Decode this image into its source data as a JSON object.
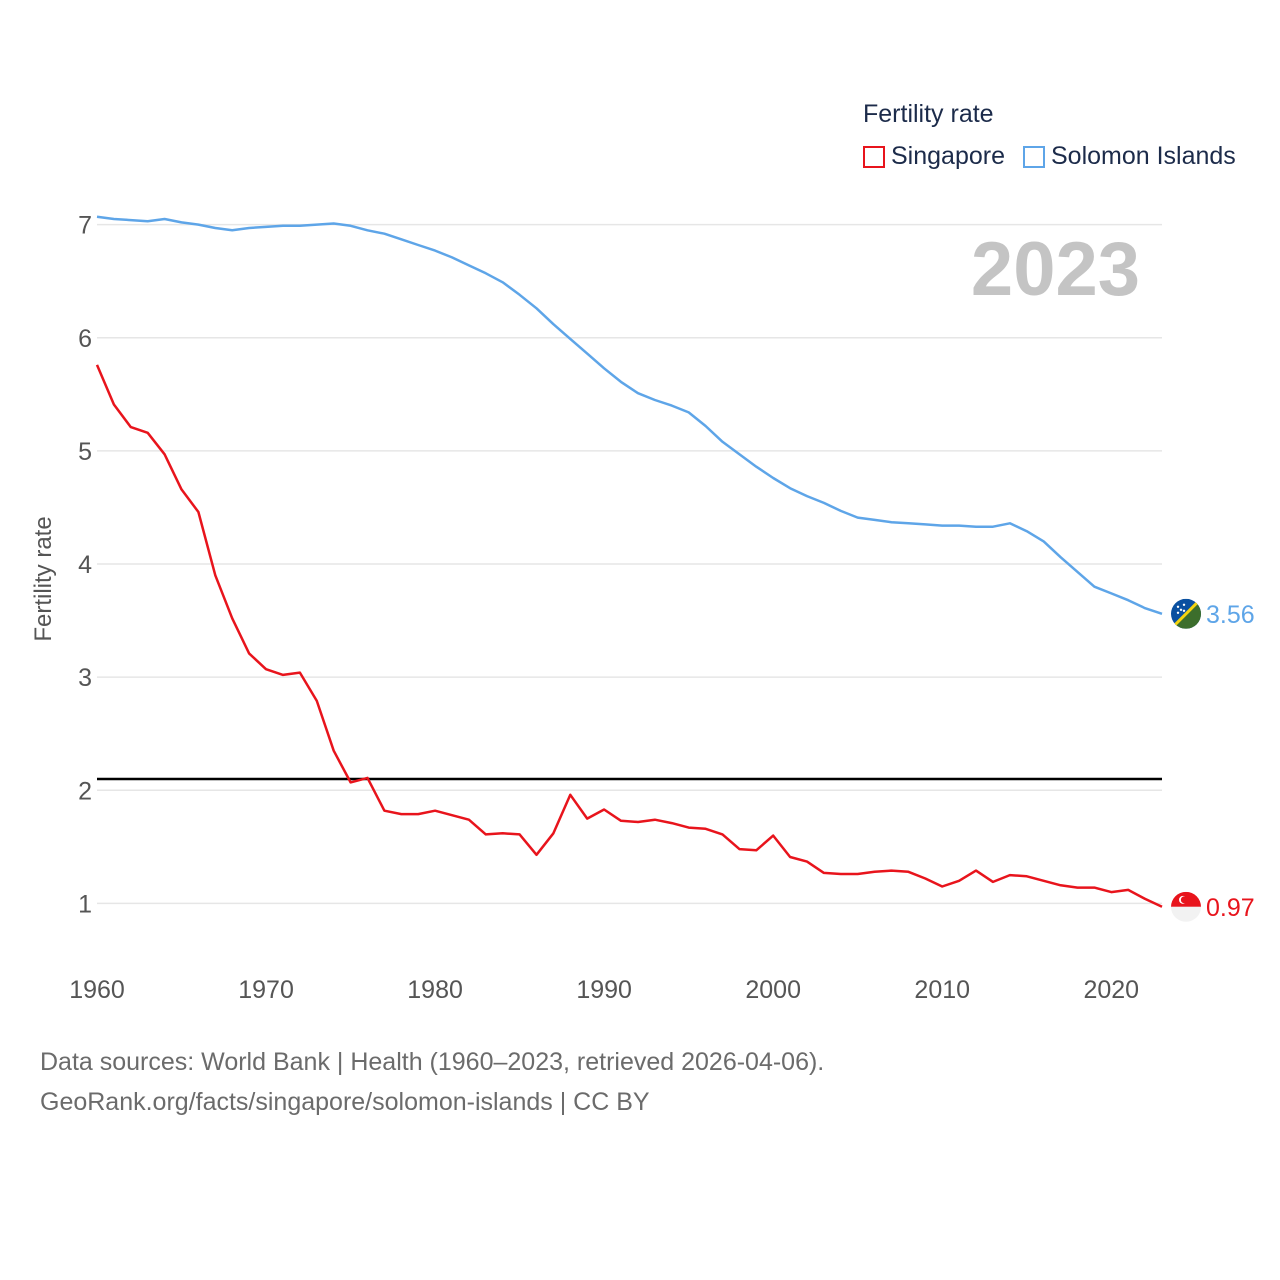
{
  "legend": {
    "title": "Fertility rate"
  },
  "year_stamp": "2023",
  "footer": {
    "line1": "Data sources: World Bank | Health (1960–2023, retrieved 2026-04-06).",
    "line2": "GeoRank.org/facts/singapore/solomon-islands | CC BY"
  },
  "chart_data": {
    "type": "line",
    "title": "Fertility rate",
    "xlabel": "",
    "ylabel": "Fertility rate",
    "xlim": [
      1960,
      2023
    ],
    "ylim": [
      0.5,
      7.2
    ],
    "x_ticks": [
      1960,
      1970,
      1980,
      1990,
      2000,
      2010,
      2020
    ],
    "y_ticks": [
      1,
      2,
      3,
      4,
      5,
      6,
      7
    ],
    "grid": true,
    "legend_position": "top-right",
    "reference_line": {
      "value": 2.1,
      "color": "#000000",
      "label": ""
    },
    "x": [
      1960,
      1961,
      1962,
      1963,
      1964,
      1965,
      1966,
      1967,
      1968,
      1969,
      1970,
      1971,
      1972,
      1973,
      1974,
      1975,
      1976,
      1977,
      1978,
      1979,
      1980,
      1981,
      1982,
      1983,
      1984,
      1985,
      1986,
      1987,
      1988,
      1989,
      1990,
      1991,
      1992,
      1993,
      1994,
      1995,
      1996,
      1997,
      1998,
      1999,
      2000,
      2001,
      2002,
      2003,
      2004,
      2005,
      2006,
      2007,
      2008,
      2009,
      2010,
      2011,
      2012,
      2013,
      2014,
      2015,
      2016,
      2017,
      2018,
      2019,
      2020,
      2021,
      2022,
      2023
    ],
    "series": [
      {
        "name": "Singapore",
        "color": "#e8141c",
        "end_label": "0.97",
        "flag": "singapore-flag",
        "values": [
          5.76,
          5.41,
          5.21,
          5.16,
          4.97,
          4.66,
          4.46,
          3.9,
          3.52,
          3.21,
          3.07,
          3.02,
          3.04,
          2.79,
          2.35,
          2.07,
          2.11,
          1.82,
          1.79,
          1.79,
          1.82,
          1.78,
          1.74,
          1.61,
          1.62,
          1.61,
          1.43,
          1.62,
          1.96,
          1.75,
          1.83,
          1.73,
          1.72,
          1.74,
          1.71,
          1.67,
          1.66,
          1.61,
          1.48,
          1.47,
          1.6,
          1.41,
          1.37,
          1.27,
          1.26,
          1.26,
          1.28,
          1.29,
          1.28,
          1.22,
          1.15,
          1.2,
          1.29,
          1.19,
          1.25,
          1.24,
          1.2,
          1.16,
          1.14,
          1.14,
          1.1,
          1.12,
          1.04,
          0.97
        ]
      },
      {
        "name": "Solomon Islands",
        "color": "#5ea5e8",
        "end_label": "3.56",
        "flag": "solomon-islands-flag",
        "values": [
          7.07,
          7.05,
          7.04,
          7.03,
          7.05,
          7.02,
          7.0,
          6.97,
          6.95,
          6.97,
          6.98,
          6.99,
          6.99,
          7.0,
          7.01,
          6.99,
          6.95,
          6.92,
          6.87,
          6.82,
          6.77,
          6.71,
          6.64,
          6.57,
          6.49,
          6.38,
          6.26,
          6.12,
          5.99,
          5.86,
          5.73,
          5.61,
          5.51,
          5.45,
          5.4,
          5.34,
          5.22,
          5.08,
          4.97,
          4.86,
          4.76,
          4.67,
          4.6,
          4.54,
          4.47,
          4.41,
          4.39,
          4.37,
          4.36,
          4.35,
          4.34,
          4.34,
          4.33,
          4.33,
          4.36,
          4.29,
          4.2,
          4.06,
          3.93,
          3.8,
          3.74,
          3.68,
          3.61,
          3.56
        ]
      }
    ]
  }
}
